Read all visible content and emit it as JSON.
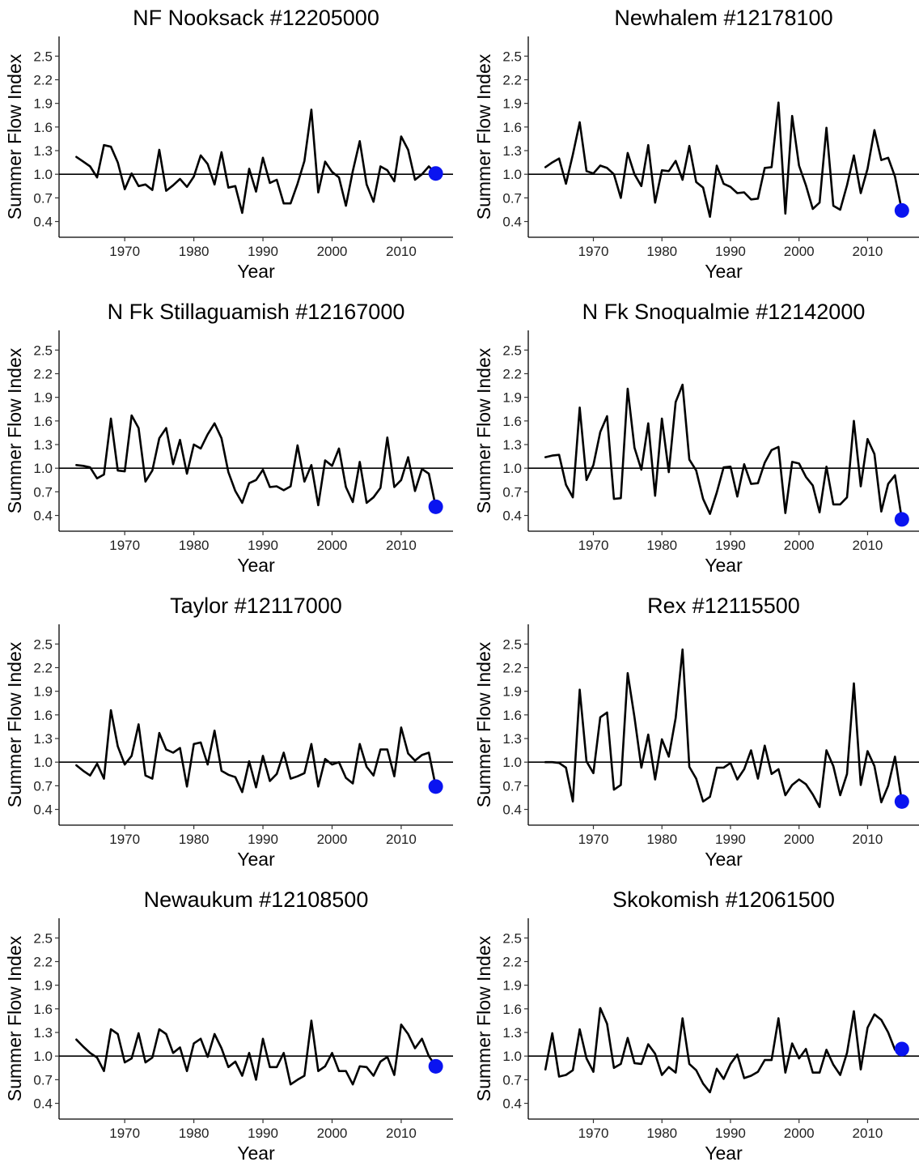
{
  "chart_data": [
    {
      "type": "line",
      "title": "NF Nooksack #12205000",
      "xlabel": "Year",
      "ylabel": "Summer Flow Index",
      "xlim": [
        1960.5,
        2017.5
      ],
      "ylim": [
        0.2,
        2.75
      ],
      "x_ticks": [
        1970,
        1980,
        1990,
        2000,
        2010
      ],
      "y_ticks": [
        0.4,
        0.7,
        1.0,
        1.3,
        1.6,
        1.9,
        2.2,
        2.5
      ],
      "y_tick_labels": [
        "0.4",
        "0.7",
        "1.0",
        "1.3",
        "1.6",
        "1.9",
        "2.2",
        "2.5"
      ],
      "reference_line": 1.0,
      "grid": false,
      "highlight_color": "#0a14f0",
      "x_start": 1963,
      "values": [
        1.22,
        1.16,
        1.1,
        0.96,
        1.37,
        1.35,
        1.15,
        0.81,
        1.01,
        0.85,
        0.87,
        0.8,
        1.31,
        0.79,
        0.86,
        0.94,
        0.84,
        0.97,
        1.24,
        1.13,
        0.87,
        1.28,
        0.83,
        0.85,
        0.51,
        1.07,
        0.78,
        1.21,
        0.89,
        0.93,
        0.63,
        0.63,
        0.88,
        1.17,
        1.82,
        0.77,
        1.16,
        1.03,
        0.96,
        0.6,
        1.04,
        1.42,
        0.87,
        0.65,
        1.1,
        1.05,
        0.91,
        1.48,
        1.31,
        0.93,
        1.0,
        1.1,
        1.01
      ],
      "highlight": {
        "year": 2015,
        "value": 1.01
      }
    },
    {
      "type": "line",
      "title": "Newhalem #12178100",
      "xlabel": "Year",
      "ylabel": "Summer Flow Index",
      "xlim": [
        1960.5,
        2017.5
      ],
      "ylim": [
        0.2,
        2.75
      ],
      "x_ticks": [
        1970,
        1980,
        1990,
        2000,
        2010
      ],
      "y_ticks": [
        0.4,
        0.7,
        1.0,
        1.3,
        1.6,
        1.9,
        2.2,
        2.5
      ],
      "y_tick_labels": [
        "0.4",
        "0.7",
        "1.0",
        "1.3",
        "1.6",
        "1.9",
        "2.2",
        "2.5"
      ],
      "reference_line": 1.0,
      "grid": false,
      "highlight_color": "#0a14f0",
      "x_start": 1963,
      "values": [
        1.09,
        1.15,
        1.2,
        0.88,
        1.25,
        1.66,
        1.04,
        1.01,
        1.11,
        1.08,
        1.0,
        0.7,
        1.27,
        1.0,
        0.85,
        1.37,
        0.64,
        1.05,
        1.04,
        1.17,
        0.93,
        1.36,
        0.9,
        0.83,
        0.46,
        1.11,
        0.88,
        0.84,
        0.76,
        0.77,
        0.68,
        0.69,
        1.08,
        1.09,
        1.91,
        0.5,
        1.74,
        1.11,
        0.86,
        0.56,
        0.64,
        1.59,
        0.6,
        0.55,
        0.86,
        1.24,
        0.76,
        1.07,
        1.56,
        1.18,
        1.21,
        0.97,
        0.54
      ],
      "highlight": {
        "year": 2015,
        "value": 0.54
      }
    },
    {
      "type": "line",
      "title": "N Fk Stillaguamish #12167000",
      "xlabel": "Year",
      "ylabel": "Summer Flow Index",
      "xlim": [
        1960.5,
        2017.5
      ],
      "ylim": [
        0.2,
        2.75
      ],
      "x_ticks": [
        1970,
        1980,
        1990,
        2000,
        2010
      ],
      "y_ticks": [
        0.4,
        0.7,
        1.0,
        1.3,
        1.6,
        1.9,
        2.2,
        2.5
      ],
      "y_tick_labels": [
        "0.4",
        "0.7",
        "1.0",
        "1.3",
        "1.6",
        "1.9",
        "2.2",
        "2.5"
      ],
      "reference_line": 1.0,
      "grid": false,
      "highlight_color": "#0a14f0",
      "x_start": 1963,
      "values": [
        1.04,
        1.03,
        1.01,
        0.87,
        0.92,
        1.63,
        0.97,
        0.96,
        1.67,
        1.51,
        0.83,
        0.97,
        1.38,
        1.51,
        1.05,
        1.36,
        0.93,
        1.3,
        1.25,
        1.43,
        1.57,
        1.38,
        0.95,
        0.71,
        0.56,
        0.81,
        0.85,
        0.98,
        0.76,
        0.77,
        0.72,
        0.77,
        1.29,
        0.83,
        1.04,
        0.53,
        1.1,
        1.03,
        1.25,
        0.76,
        0.57,
        1.08,
        0.56,
        0.63,
        0.75,
        1.39,
        0.76,
        0.85,
        1.14,
        0.71,
        0.99,
        0.93,
        0.51
      ],
      "highlight": {
        "year": 2015,
        "value": 0.51
      }
    },
    {
      "type": "line",
      "title": "N Fk Snoqualmie #12142000",
      "xlabel": "Year",
      "ylabel": "Summer Flow Index",
      "xlim": [
        1960.5,
        2017.5
      ],
      "ylim": [
        0.2,
        2.75
      ],
      "x_ticks": [
        1970,
        1980,
        1990,
        2000,
        2010
      ],
      "y_ticks": [
        0.4,
        0.7,
        1.0,
        1.3,
        1.6,
        1.9,
        2.2,
        2.5
      ],
      "y_tick_labels": [
        "0.4",
        "0.7",
        "1.0",
        "1.3",
        "1.6",
        "1.9",
        "2.2",
        "2.5"
      ],
      "reference_line": 1.0,
      "grid": false,
      "highlight_color": "#0a14f0",
      "x_start": 1963,
      "values": [
        1.14,
        1.16,
        1.17,
        0.79,
        0.63,
        1.77,
        0.85,
        1.04,
        1.46,
        1.66,
        0.61,
        0.62,
        2.01,
        1.26,
        0.98,
        1.57,
        0.65,
        1.63,
        0.95,
        1.84,
        2.06,
        1.11,
        0.97,
        0.61,
        0.42,
        0.69,
        1.01,
        1.02,
        0.64,
        1.05,
        0.8,
        0.81,
        1.07,
        1.23,
        1.27,
        0.43,
        1.08,
        1.06,
        0.89,
        0.78,
        0.44,
        1.02,
        0.54,
        0.54,
        0.63,
        1.6,
        0.77,
        1.37,
        1.18,
        0.45,
        0.8,
        0.91,
        0.35
      ],
      "highlight": {
        "year": 2015,
        "value": 0.35
      }
    },
    {
      "type": "line",
      "title": "Taylor #12117000",
      "xlabel": "Year",
      "ylabel": "Summer Flow Index",
      "xlim": [
        1960.5,
        2017.5
      ],
      "ylim": [
        0.2,
        2.75
      ],
      "x_ticks": [
        1970,
        1980,
        1990,
        2000,
        2010
      ],
      "y_ticks": [
        0.4,
        0.7,
        1.0,
        1.3,
        1.6,
        1.9,
        2.2,
        2.5
      ],
      "y_tick_labels": [
        "0.4",
        "0.7",
        "1.0",
        "1.3",
        "1.6",
        "1.9",
        "2.2",
        "2.5"
      ],
      "reference_line": 1.0,
      "grid": false,
      "highlight_color": "#0a14f0",
      "x_start": 1963,
      "values": [
        0.96,
        0.89,
        0.83,
        0.98,
        0.79,
        1.66,
        1.2,
        0.97,
        1.08,
        1.48,
        0.83,
        0.79,
        1.37,
        1.16,
        1.12,
        1.18,
        0.69,
        1.23,
        1.25,
        0.97,
        1.4,
        0.89,
        0.84,
        0.81,
        0.62,
        1.01,
        0.68,
        1.08,
        0.76,
        0.85,
        1.12,
        0.79,
        0.82,
        0.86,
        1.23,
        0.69,
        1.04,
        0.97,
        1.0,
        0.8,
        0.73,
        1.23,
        0.94,
        0.83,
        1.16,
        1.16,
        0.82,
        1.44,
        1.11,
        1.02,
        1.09,
        1.12,
        0.69
      ],
      "highlight": {
        "year": 2015,
        "value": 0.69
      }
    },
    {
      "type": "line",
      "title": "Rex #12115500",
      "xlabel": "Year",
      "ylabel": "Summer Flow Index",
      "xlim": [
        1960.5,
        2017.5
      ],
      "ylim": [
        0.2,
        2.75
      ],
      "x_ticks": [
        1970,
        1980,
        1990,
        2000,
        2010
      ],
      "y_ticks": [
        0.4,
        0.7,
        1.0,
        1.3,
        1.6,
        1.9,
        2.2,
        2.5
      ],
      "y_tick_labels": [
        "0.4",
        "0.7",
        "1.0",
        "1.3",
        "1.6",
        "1.9",
        "2.2",
        "2.5"
      ],
      "reference_line": 1.0,
      "grid": false,
      "highlight_color": "#0a14f0",
      "x_start": 1963,
      "values": [
        1.0,
        1.0,
        0.99,
        0.93,
        0.5,
        1.92,
        1.01,
        0.86,
        1.57,
        1.63,
        0.65,
        0.71,
        2.13,
        1.57,
        0.93,
        1.35,
        0.78,
        1.29,
        1.07,
        1.56,
        2.43,
        0.94,
        0.79,
        0.5,
        0.56,
        0.93,
        0.93,
        0.99,
        0.78,
        0.91,
        1.15,
        0.79,
        1.21,
        0.85,
        0.91,
        0.58,
        0.71,
        0.78,
        0.72,
        0.59,
        0.43,
        1.15,
        0.95,
        0.58,
        0.85,
        2.0,
        0.71,
        1.14,
        0.95,
        0.49,
        0.7,
        1.07,
        0.5
      ],
      "highlight": {
        "year": 2015,
        "value": 0.5
      }
    },
    {
      "type": "line",
      "title": "Newaukum #12108500",
      "xlabel": "Year",
      "ylabel": "Summer Flow Index",
      "xlim": [
        1960.5,
        2017.5
      ],
      "ylim": [
        0.2,
        2.75
      ],
      "x_ticks": [
        1970,
        1980,
        1990,
        2000,
        2010
      ],
      "y_ticks": [
        0.4,
        0.7,
        1.0,
        1.3,
        1.6,
        1.9,
        2.2,
        2.5
      ],
      "y_tick_labels": [
        "0.4",
        "0.7",
        "1.0",
        "1.3",
        "1.6",
        "1.9",
        "2.2",
        "2.5"
      ],
      "reference_line": 1.0,
      "grid": false,
      "highlight_color": "#0a14f0",
      "x_start": 1963,
      "values": [
        1.21,
        1.12,
        1.04,
        0.98,
        0.81,
        1.34,
        1.28,
        0.92,
        0.97,
        1.29,
        0.92,
        0.98,
        1.34,
        1.28,
        1.04,
        1.11,
        0.81,
        1.16,
        1.22,
        0.99,
        1.28,
        1.1,
        0.86,
        0.93,
        0.75,
        1.04,
        0.7,
        1.22,
        0.86,
        0.86,
        1.04,
        0.64,
        0.7,
        0.75,
        1.45,
        0.81,
        0.87,
        1.04,
        0.81,
        0.81,
        0.64,
        0.87,
        0.86,
        0.75,
        0.93,
        0.99,
        0.76,
        1.4,
        1.28,
        1.1,
        1.22,
        1.0,
        0.87
      ],
      "highlight": {
        "year": 2015,
        "value": 0.87
      }
    },
    {
      "type": "line",
      "title": "Skokomish #12061500",
      "xlabel": "Year",
      "ylabel": "Summer Flow Index",
      "xlim": [
        1960.5,
        2017.5
      ],
      "ylim": [
        0.2,
        2.75
      ],
      "x_ticks": [
        1970,
        1980,
        1990,
        2000,
        2010
      ],
      "y_ticks": [
        0.4,
        0.7,
        1.0,
        1.3,
        1.6,
        1.9,
        2.2,
        2.5
      ],
      "y_tick_labels": [
        "0.4",
        "0.7",
        "1.0",
        "1.3",
        "1.6",
        "1.9",
        "2.2",
        "2.5"
      ],
      "reference_line": 1.0,
      "grid": false,
      "highlight_color": "#0a14f0",
      "x_start": 1963,
      "values": [
        0.83,
        1.29,
        0.74,
        0.76,
        0.82,
        1.34,
        0.97,
        0.8,
        1.61,
        1.41,
        0.85,
        0.9,
        1.23,
        0.91,
        0.9,
        1.15,
        1.03,
        0.76,
        0.86,
        0.79,
        1.48,
        0.9,
        0.82,
        0.65,
        0.54,
        0.84,
        0.71,
        0.9,
        1.02,
        0.72,
        0.75,
        0.8,
        0.95,
        0.95,
        1.48,
        0.79,
        1.16,
        0.97,
        1.09,
        0.79,
        0.79,
        1.08,
        0.89,
        0.76,
        1.04,
        1.57,
        0.83,
        1.36,
        1.53,
        1.46,
        1.3,
        1.08,
        1.09
      ],
      "highlight": {
        "year": 2015,
        "value": 1.09
      }
    }
  ]
}
